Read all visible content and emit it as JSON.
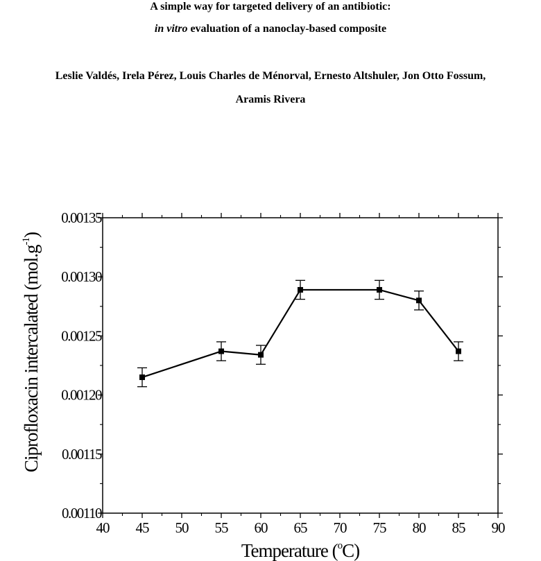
{
  "paper": {
    "title_line1": "A simple way for targeted delivery of an antibiotic:",
    "title_line2_italic": "in vitro",
    "title_line2_rest": " evaluation of a nanoclay-based composite",
    "authors_line1": "Leslie Valdés, Irela Pérez, Louis Charles de Ménorval, Ernesto Altshuler, Jon Otto Fossum,",
    "authors_line2": "Aramis Rivera"
  },
  "chart_data": {
    "type": "line",
    "title": "",
    "xlabel_main": "Temperature (",
    "xlabel_degree": "o",
    "xlabel_end": "C)",
    "ylabel_main": "Ciprofloxacin intercalated (mol.g",
    "ylabel_sup": "-1",
    "ylabel_end": ")",
    "xlim": [
      40,
      90
    ],
    "ylim": [
      0.0011,
      0.00135
    ],
    "x_ticks": [
      "40",
      "45",
      "50",
      "55",
      "60",
      "65",
      "70",
      "75",
      "80",
      "85",
      "90"
    ],
    "y_ticks": [
      "0.00110",
      "0.00115",
      "0.00120",
      "0.00125",
      "0.00130",
      "0.00135"
    ],
    "grid": false,
    "series": [
      {
        "x": [
          45,
          55,
          60,
          65,
          75,
          80,
          85
        ],
        "y": [
          0.001215,
          0.001237,
          0.001234,
          0.001289,
          0.001289,
          0.00128,
          0.001237
        ],
        "error": [
          8e-06,
          8e-06,
          8e-06,
          8e-06,
          8e-06,
          8e-06,
          8e-06
        ],
        "color": "#000000",
        "marker": "square"
      }
    ]
  }
}
